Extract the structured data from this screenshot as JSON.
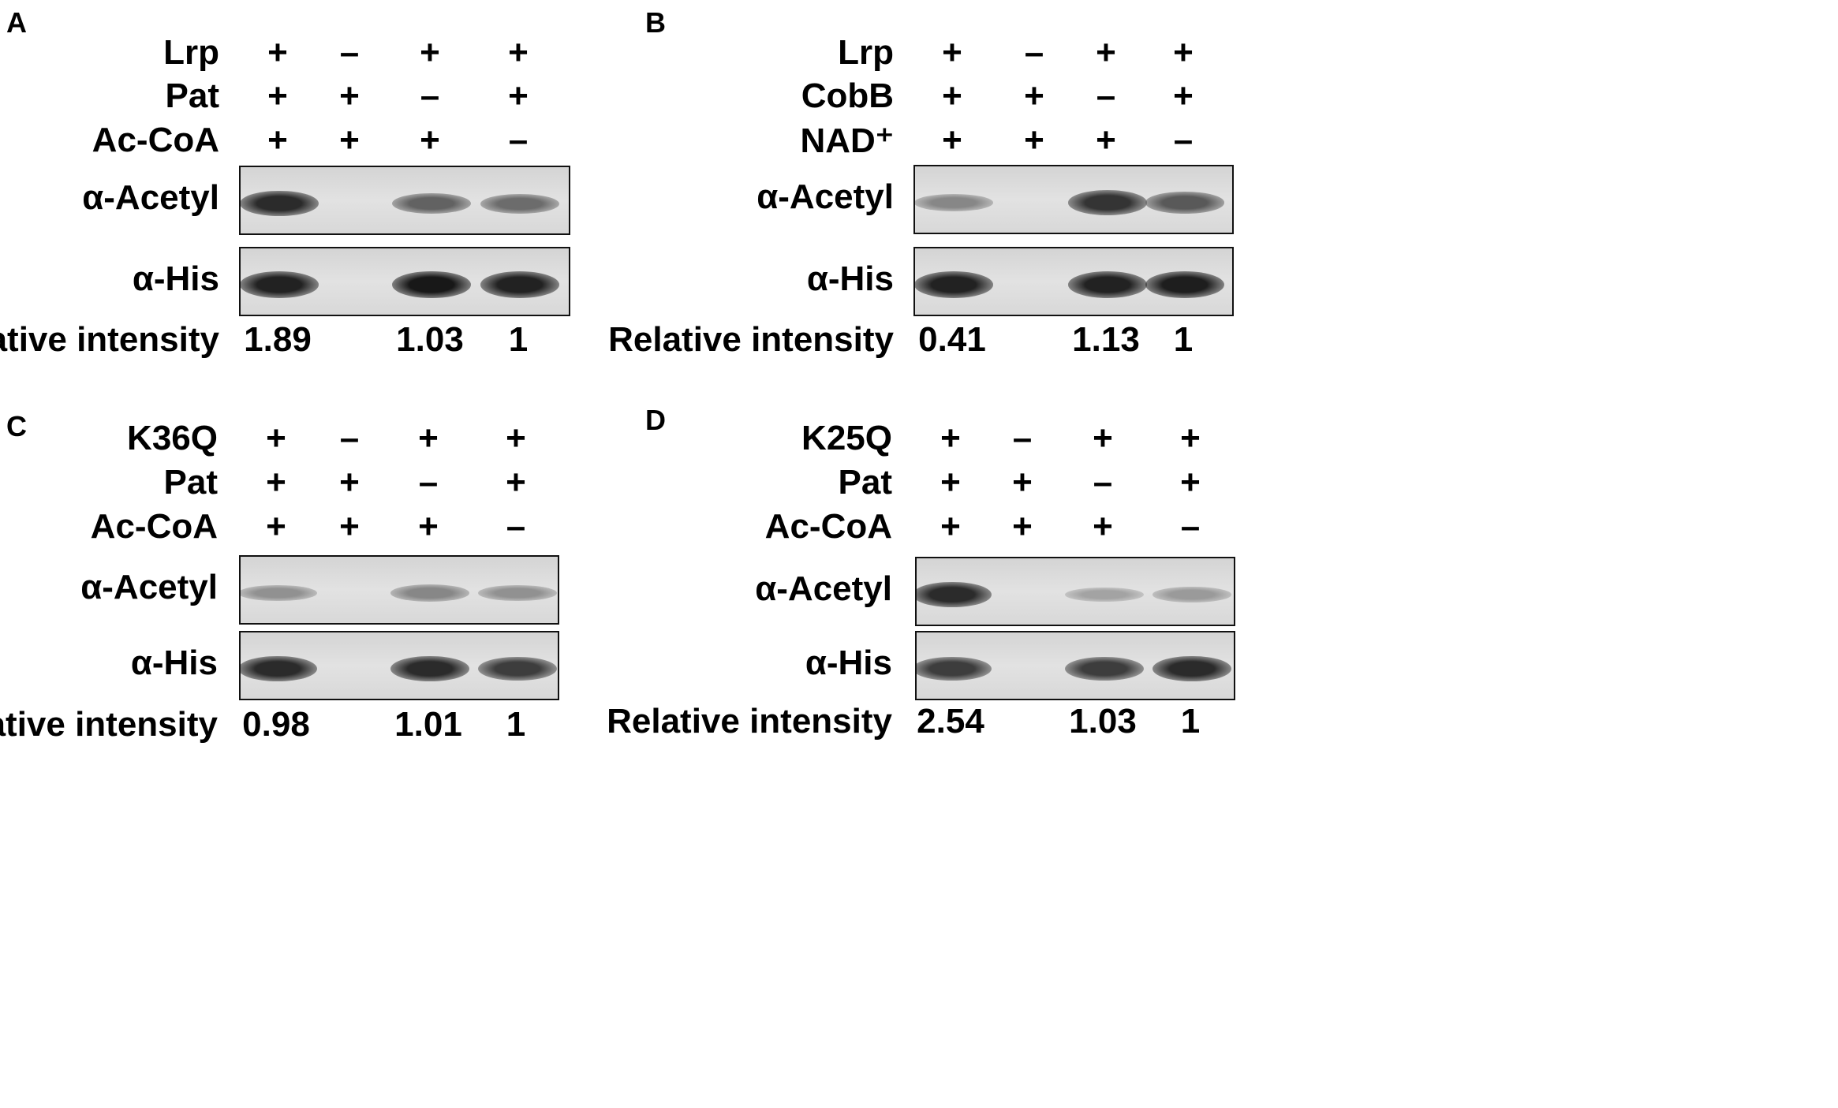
{
  "panels": [
    {
      "letter": "A",
      "rows": [
        {
          "label": "Lrp",
          "values": [
            "+",
            "–",
            "+",
            "+"
          ]
        },
        {
          "label": "Pat",
          "values": [
            "+",
            "+",
            "–",
            "+"
          ]
        },
        {
          "label": "Ac-CoA",
          "values": [
            "+",
            "+",
            "+",
            "–"
          ]
        }
      ],
      "blots": [
        {
          "label": "α-Acetyl",
          "bands": [
            0.85,
            0.0,
            0.55,
            0.5
          ]
        },
        {
          "label": "α-His",
          "bands": [
            0.9,
            0.0,
            0.95,
            0.9
          ]
        }
      ],
      "intensity_label": "Relative intensity",
      "intensities": [
        "1.89",
        "",
        "1.03",
        "1"
      ]
    },
    {
      "letter": "B",
      "rows": [
        {
          "label": "Lrp",
          "values": [
            "+",
            "–",
            "+",
            "+"
          ]
        },
        {
          "label": "CobB",
          "values": [
            "+",
            "+",
            "–",
            "+"
          ]
        },
        {
          "label": "NAD⁺",
          "values": [
            "+",
            "+",
            "+",
            "–"
          ]
        }
      ],
      "blots": [
        {
          "label": "α-Acetyl",
          "bands": [
            0.35,
            0.0,
            0.8,
            0.6
          ]
        },
        {
          "label": "α-His",
          "bands": [
            0.9,
            0.0,
            0.9,
            0.92
          ]
        }
      ],
      "intensity_label": "Relative intensity",
      "intensities": [
        "0.41",
        "",
        "1.13",
        "1"
      ]
    },
    {
      "letter": "C",
      "rows": [
        {
          "label": "K36Q",
          "values": [
            "+",
            "–",
            "+",
            "+"
          ]
        },
        {
          "label": "Pat",
          "values": [
            "+",
            "+",
            "–",
            "+"
          ]
        },
        {
          "label": "Ac-CoA",
          "values": [
            "+",
            "+",
            "+",
            "–"
          ]
        }
      ],
      "blots": [
        {
          "label": "α-Acetyl",
          "bands": [
            0.3,
            0.0,
            0.35,
            0.3
          ]
        },
        {
          "label": "α-His",
          "bands": [
            0.85,
            0.0,
            0.85,
            0.75
          ]
        }
      ],
      "intensity_label": "Relative intensity",
      "intensities": [
        "0.98",
        "",
        "1.01",
        "1"
      ]
    },
    {
      "letter": "D",
      "rows": [
        {
          "label": "K25Q",
          "values": [
            "+",
            "–",
            "+",
            "+"
          ]
        },
        {
          "label": "Pat",
          "values": [
            "+",
            "+",
            "–",
            "+"
          ]
        },
        {
          "label": "Ac-CoA",
          "values": [
            "+",
            "+",
            "+",
            "–"
          ]
        }
      ],
      "blots": [
        {
          "label": "α-Acetyl",
          "bands": [
            0.85,
            0.0,
            0.2,
            0.25
          ]
        },
        {
          "label": "α-His",
          "bands": [
            0.75,
            0.0,
            0.75,
            0.85
          ]
        }
      ],
      "intensity_label": "Relative intensity",
      "intensities": [
        "2.54",
        "",
        "1.03",
        "1"
      ]
    }
  ]
}
